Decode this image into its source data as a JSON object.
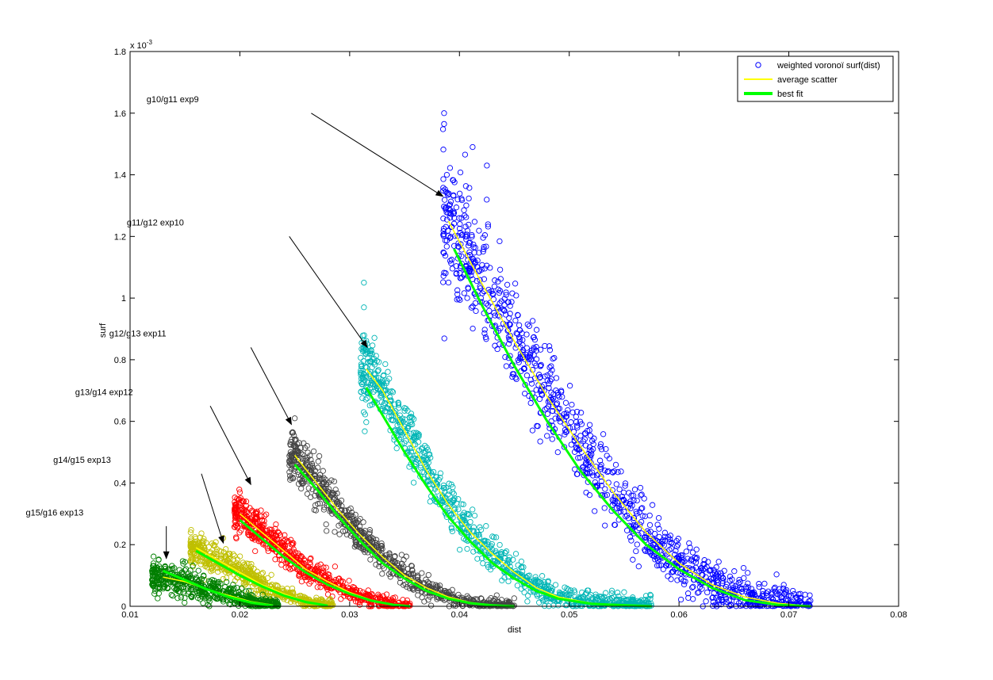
{
  "chart_data": {
    "type": "scatter",
    "xlabel": "dist",
    "ylabel": "surf",
    "y_exponent_label": "x 10",
    "y_exponent_power": "-3",
    "xlim": [
      0.01,
      0.08
    ],
    "ylim": [
      0,
      1.8
    ],
    "x_ticks": [
      0.01,
      0.02,
      0.03,
      0.04,
      0.05,
      0.06,
      0.07,
      0.08
    ],
    "x_tick_labels": [
      "0.01",
      "0.02",
      "0.03",
      "0.04",
      "0.05",
      "0.06",
      "0.07",
      "0.08"
    ],
    "y_ticks": [
      0,
      0.2,
      0.4,
      0.6,
      0.8,
      1.0,
      1.2,
      1.4,
      1.6,
      1.8
    ],
    "y_tick_labels": [
      "0",
      "0.2",
      "0.4",
      "0.6",
      "0.8",
      "1",
      "1.2",
      "1.4",
      "1.6",
      "1.8"
    ],
    "grid": false,
    "legend_position": "top-right",
    "legend": [
      {
        "label": "weighted voronoï surf(dist)",
        "kind": "marker",
        "color": "#0000ff"
      },
      {
        "label": "average scatter",
        "kind": "line",
        "color": "#ffff00"
      },
      {
        "label": "best fit",
        "kind": "line",
        "color": "#00ff00"
      }
    ],
    "groups": [
      {
        "color": "#0000ff",
        "x_start": 0.0385,
        "x_end": 0.072,
        "y_start": 1.3,
        "spread": 0.09,
        "avg_curve": [
          [
            0.039,
            1.25
          ],
          [
            0.042,
            1.05
          ],
          [
            0.045,
            0.86
          ],
          [
            0.048,
            0.68
          ],
          [
            0.051,
            0.52
          ],
          [
            0.054,
            0.37
          ],
          [
            0.057,
            0.24
          ],
          [
            0.06,
            0.14
          ],
          [
            0.063,
            0.07
          ],
          [
            0.066,
            0.03
          ],
          [
            0.069,
            0.01
          ],
          [
            0.072,
            0.0
          ]
        ],
        "fit_curve": [
          [
            0.0395,
            1.16
          ],
          [
            0.042,
            0.98
          ],
          [
            0.045,
            0.78
          ],
          [
            0.048,
            0.6
          ],
          [
            0.051,
            0.44
          ],
          [
            0.054,
            0.31
          ],
          [
            0.057,
            0.2
          ],
          [
            0.06,
            0.12
          ],
          [
            0.063,
            0.06
          ],
          [
            0.066,
            0.02
          ],
          [
            0.069,
            0.005
          ],
          [
            0.072,
            0.0
          ]
        ]
      },
      {
        "color": "#00b5b5",
        "x_start": 0.031,
        "x_end": 0.0575,
        "y_start": 0.8,
        "spread": 0.05,
        "avg_curve": [
          [
            0.0315,
            0.77
          ],
          [
            0.033,
            0.7
          ],
          [
            0.035,
            0.57
          ],
          [
            0.037,
            0.44
          ],
          [
            0.039,
            0.33
          ],
          [
            0.041,
            0.24
          ],
          [
            0.043,
            0.17
          ],
          [
            0.045,
            0.11
          ],
          [
            0.047,
            0.06
          ],
          [
            0.049,
            0.03
          ],
          [
            0.052,
            0.01
          ],
          [
            0.0555,
            0.0
          ]
        ],
        "fit_curve": [
          [
            0.0315,
            0.71
          ],
          [
            0.033,
            0.62
          ],
          [
            0.035,
            0.5
          ],
          [
            0.037,
            0.39
          ],
          [
            0.039,
            0.29
          ],
          [
            0.041,
            0.21
          ],
          [
            0.043,
            0.14
          ],
          [
            0.045,
            0.09
          ],
          [
            0.047,
            0.05
          ],
          [
            0.049,
            0.025
          ],
          [
            0.052,
            0.008
          ],
          [
            0.0575,
            0.0
          ]
        ]
      },
      {
        "color": "#444444",
        "x_start": 0.0245,
        "x_end": 0.045,
        "y_start": 0.52,
        "spread": 0.035,
        "avg_curve": [
          [
            0.025,
            0.49
          ],
          [
            0.027,
            0.4
          ],
          [
            0.029,
            0.31
          ],
          [
            0.031,
            0.23
          ],
          [
            0.033,
            0.16
          ],
          [
            0.035,
            0.1
          ],
          [
            0.037,
            0.06
          ],
          [
            0.039,
            0.03
          ],
          [
            0.041,
            0.012
          ],
          [
            0.043,
            0.004
          ],
          [
            0.045,
            0.0
          ]
        ],
        "fit_curve": [
          [
            0.025,
            0.46
          ],
          [
            0.027,
            0.38
          ],
          [
            0.029,
            0.29
          ],
          [
            0.031,
            0.21
          ],
          [
            0.033,
            0.14
          ],
          [
            0.035,
            0.09
          ],
          [
            0.037,
            0.05
          ],
          [
            0.039,
            0.025
          ],
          [
            0.041,
            0.01
          ],
          [
            0.043,
            0.003
          ],
          [
            0.045,
            0.0
          ]
        ]
      },
      {
        "color": "#ff0000",
        "x_start": 0.0195,
        "x_end": 0.0355,
        "y_start": 0.33,
        "spread": 0.03,
        "avg_curve": [
          [
            0.02,
            0.3
          ],
          [
            0.022,
            0.24
          ],
          [
            0.024,
            0.18
          ],
          [
            0.026,
            0.12
          ],
          [
            0.028,
            0.08
          ],
          [
            0.03,
            0.045
          ],
          [
            0.032,
            0.02
          ],
          [
            0.034,
            0.006
          ],
          [
            0.0355,
            0.0
          ]
        ],
        "fit_curve": [
          [
            0.02,
            0.28
          ],
          [
            0.022,
            0.22
          ],
          [
            0.024,
            0.16
          ],
          [
            0.026,
            0.11
          ],
          [
            0.028,
            0.07
          ],
          [
            0.03,
            0.04
          ],
          [
            0.032,
            0.018
          ],
          [
            0.034,
            0.005
          ],
          [
            0.0355,
            0.0
          ]
        ]
      },
      {
        "color": "#bfbf00",
        "x_start": 0.0155,
        "x_end": 0.0285,
        "y_start": 0.2,
        "spread": 0.025,
        "avg_curve": [
          [
            0.016,
            0.19
          ],
          [
            0.018,
            0.15
          ],
          [
            0.02,
            0.11
          ],
          [
            0.022,
            0.07
          ],
          [
            0.024,
            0.04
          ],
          [
            0.026,
            0.015
          ],
          [
            0.028,
            0.003
          ]
        ],
        "fit_curve": [
          [
            0.016,
            0.18
          ],
          [
            0.018,
            0.14
          ],
          [
            0.02,
            0.1
          ],
          [
            0.022,
            0.065
          ],
          [
            0.024,
            0.035
          ],
          [
            0.026,
            0.014
          ],
          [
            0.028,
            0.002
          ]
        ]
      },
      {
        "color": "#007f00",
        "x_start": 0.012,
        "x_end": 0.0235,
        "y_start": 0.11,
        "spread": 0.025,
        "avg_curve": [
          [
            0.013,
            0.095
          ],
          [
            0.015,
            0.08
          ],
          [
            0.017,
            0.055
          ],
          [
            0.019,
            0.035
          ],
          [
            0.021,
            0.015
          ],
          [
            0.023,
            0.004
          ]
        ],
        "fit_curve": [
          [
            0.013,
            0.115
          ],
          [
            0.015,
            0.085
          ],
          [
            0.017,
            0.055
          ],
          [
            0.019,
            0.03
          ],
          [
            0.021,
            0.012
          ],
          [
            0.023,
            0.002
          ]
        ]
      }
    ],
    "annotations": [
      {
        "text": "g10/g11 exp9",
        "text_x": 0.0115,
        "text_y": 1.635,
        "arrow_from": [
          0.0265,
          1.6
        ],
        "arrow_to": [
          0.0385,
          1.33
        ]
      },
      {
        "text": "g11/g12 exp10",
        "text_x": 0.0097,
        "text_y": 1.235,
        "arrow_from": [
          0.0245,
          1.2
        ],
        "arrow_to": [
          0.0316,
          0.84
        ]
      },
      {
        "text": "g12/g13 exp11",
        "text_x": 0.0081,
        "text_y": 0.875,
        "arrow_from": [
          0.021,
          0.84
        ],
        "arrow_to": [
          0.0247,
          0.59
        ]
      },
      {
        "text": "g13/g14 exp12",
        "text_x": 0.005,
        "text_y": 0.685,
        "arrow_from": [
          0.0173,
          0.65
        ],
        "arrow_to": [
          0.021,
          0.395
        ]
      },
      {
        "text": "g14/g15 exp13",
        "text_x": 0.003,
        "text_y": 0.465,
        "arrow_from": [
          0.0165,
          0.43
        ],
        "arrow_to": [
          0.0185,
          0.205
        ]
      },
      {
        "text": "g15/g16 exp13",
        "text_x": 0.0005,
        "text_y": 0.295,
        "arrow_from": [
          0.0133,
          0.26
        ],
        "arrow_to": [
          0.0133,
          0.155
        ]
      }
    ],
    "outliers": [
      {
        "x": 0.0386,
        "y": 1.6,
        "color": "#0000ff"
      },
      {
        "x": 0.0386,
        "y": 1.565,
        "color": "#0000ff"
      },
      {
        "x": 0.0412,
        "y": 1.49,
        "color": "#0000ff"
      },
      {
        "x": 0.0425,
        "y": 1.43,
        "color": "#0000ff"
      },
      {
        "x": 0.0313,
        "y": 1.05,
        "color": "#00b5b5"
      },
      {
        "x": 0.0313,
        "y": 0.97,
        "color": "#00b5b5"
      },
      {
        "x": 0.025,
        "y": 0.61,
        "color": "#444444"
      },
      {
        "x": 0.02,
        "y": 0.37,
        "color": "#ff0000"
      }
    ]
  }
}
